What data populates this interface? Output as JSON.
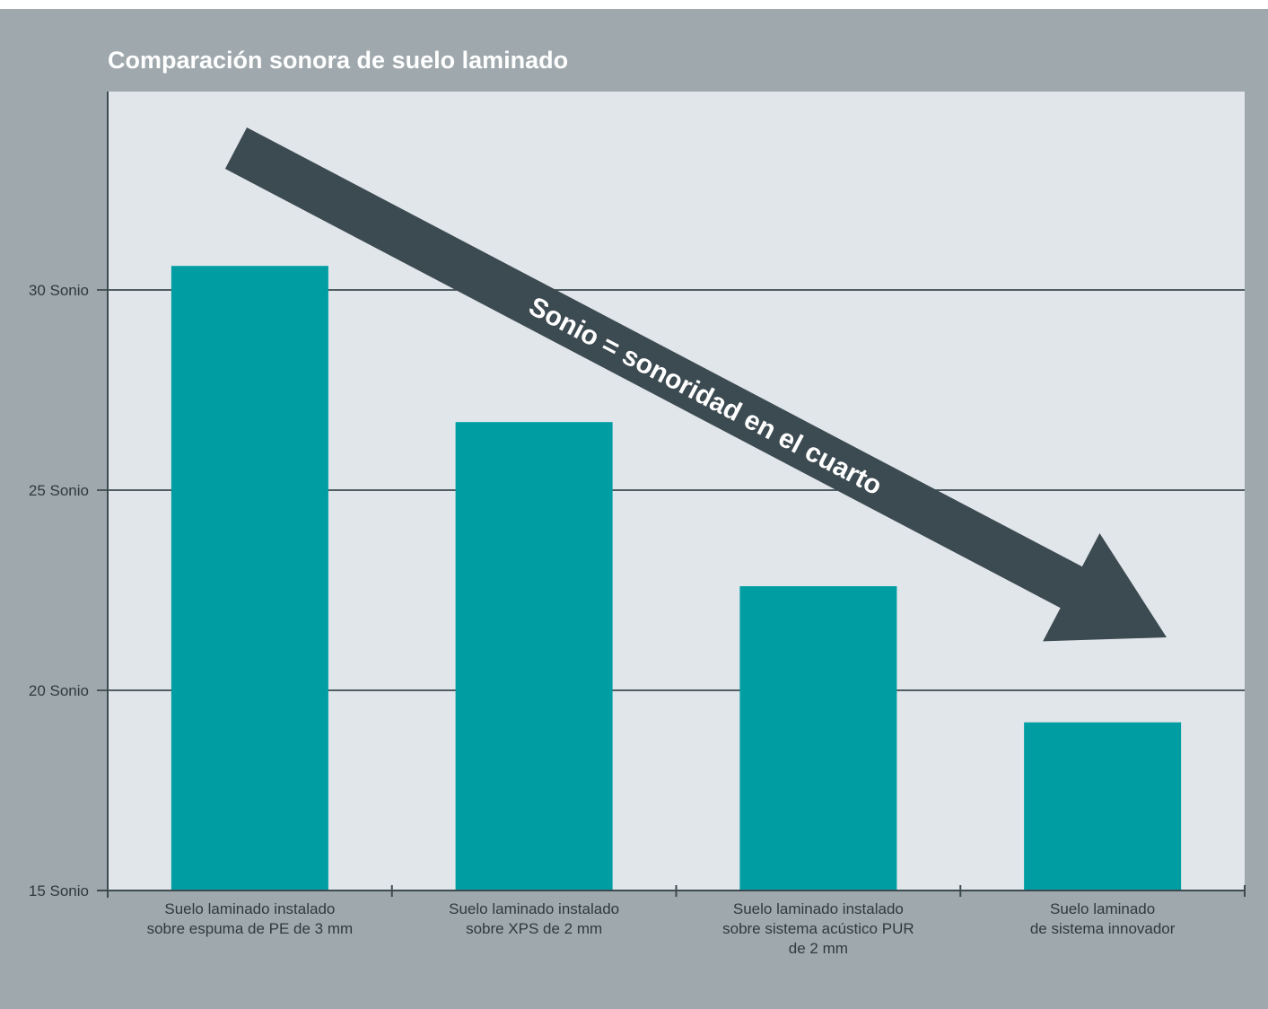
{
  "chart_data": {
    "type": "bar",
    "title": "Comparación sonora de suelo laminado",
    "xlabel": "",
    "ylabel": "",
    "ylim": [
      15,
      35
    ],
    "yticks": [
      {
        "value": 15,
        "label": "15 Sonio"
      },
      {
        "value": 20,
        "label": "20 Sonio"
      },
      {
        "value": 25,
        "label": "25 Sonio"
      },
      {
        "value": 30,
        "label": "30 Sonio"
      }
    ],
    "categories": [
      [
        "Suelo laminado instalado",
        "sobre espuma de PE de 3 mm"
      ],
      [
        "Suelo laminado instalado",
        "sobre XPS de 2 mm"
      ],
      [
        "Suelo laminado instalado",
        "sobre sistema acústico PUR",
        "de 2 mm"
      ],
      [
        "Suelo laminado",
        "de sistema innovador"
      ]
    ],
    "values": [
      30.6,
      26.7,
      22.6,
      19.2
    ],
    "grid": true,
    "annotation": "Sonio = sonoridad en el cuarto",
    "colors": {
      "background": "#9fa8ad",
      "plot_area": "#e1e6ea",
      "bar": "#009ea3",
      "arrow": "#3c4a51",
      "gridline": "#3c4a51"
    }
  }
}
